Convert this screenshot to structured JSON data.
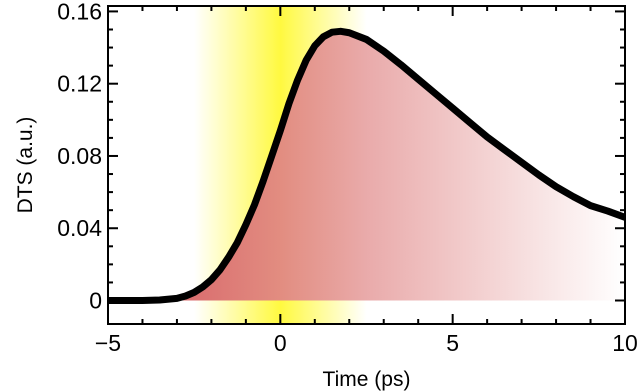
{
  "chart_data": {
    "type": "area",
    "xlabel": "Time  (ps)",
    "ylabel": "DTS (a.u.)",
    "xlim": [
      -5,
      10
    ],
    "ylim": [
      -0.013,
      0.163
    ],
    "x_ticks": [
      -5,
      0,
      5,
      10
    ],
    "x_tick_labels": [
      "−5",
      "0",
      "5",
      "10"
    ],
    "y_ticks": [
      0,
      0.04,
      0.08,
      0.12,
      0.16
    ],
    "y_tick_labels": [
      "0",
      "0.04",
      "0.08",
      "0.12",
      "0.16"
    ],
    "grid": false,
    "highlight_band": {
      "x_range": [
        -2.5,
        2.5
      ],
      "color": "#fff700"
    },
    "fill_colors": {
      "start": "#d04848",
      "end": "#ffffff"
    },
    "line_color": "#000000",
    "series": [
      {
        "x": [
          -5,
          -4,
          -3.5,
          -3,
          -2.75,
          -2.5,
          -2.25,
          -2,
          -1.75,
          -1.5,
          -1.25,
          -1,
          -0.75,
          -0.5,
          -0.25,
          0,
          0.25,
          0.5,
          0.75,
          1,
          1.25,
          1.5,
          1.75,
          2,
          2.5,
          3,
          3.5,
          4,
          4.5,
          5,
          5.5,
          6,
          6.5,
          7,
          7.5,
          8,
          8.5,
          9,
          9.5,
          10
        ],
        "values": [
          0,
          0,
          0.0003,
          0.0012,
          0.0025,
          0.0045,
          0.0075,
          0.0115,
          0.017,
          0.024,
          0.032,
          0.042,
          0.053,
          0.066,
          0.08,
          0.094,
          0.109,
          0.122,
          0.133,
          0.141,
          0.146,
          0.1485,
          0.149,
          0.1482,
          0.1445,
          0.138,
          0.1305,
          0.1225,
          0.1145,
          0.1065,
          0.0985,
          0.0905,
          0.0835,
          0.0765,
          0.0695,
          0.063,
          0.0575,
          0.0525,
          0.0495,
          0.046
        ]
      }
    ]
  }
}
